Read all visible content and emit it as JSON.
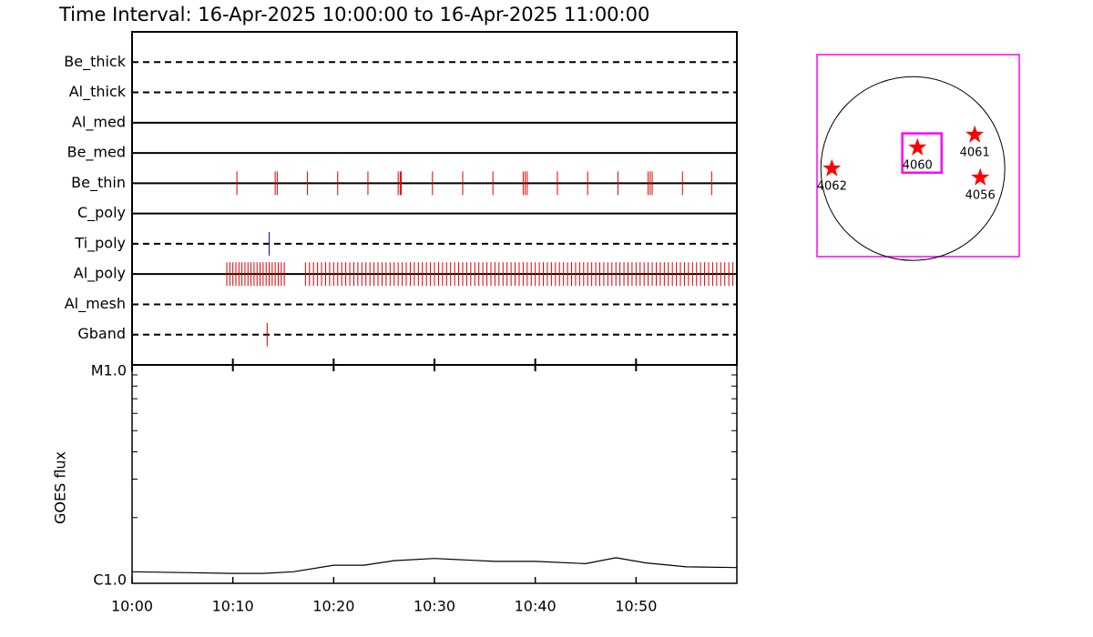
{
  "chart_data": [
    {
      "type": "timeline",
      "title": "Time Interval: 16-Apr-2025 10:00:00 to 16-Apr-2025 11:00:00",
      "xlim": [
        0,
        60
      ],
      "rows": [
        {
          "name": "Be_thick",
          "style": "dashed",
          "color": "#ff0000",
          "events": []
        },
        {
          "name": "Al_thick",
          "style": "dashed",
          "color": "#ff0000",
          "events": []
        },
        {
          "name": "Al_med",
          "style": "solid",
          "color": "#ff0000",
          "events": []
        },
        {
          "name": "Be_med",
          "style": "solid",
          "color": "#ff0000",
          "events": []
        },
        {
          "name": "Be_thin",
          "style": "solid",
          "color": "#e00000",
          "events": [
            10.4,
            14.2,
            14.4,
            17.4,
            20.4,
            23.4,
            26.4,
            26.6,
            26.7,
            29.8,
            32.8,
            35.8,
            38.8,
            39.0,
            39.2,
            42.2,
            45.2,
            48.2,
            51.2,
            51.4,
            51.6,
            54.6,
            57.5
          ]
        },
        {
          "name": "C_poly",
          "style": "solid",
          "color": "#ff0000",
          "events": []
        },
        {
          "name": "Ti_poly",
          "style": "dashed",
          "color": "#0000cc",
          "events": [
            13.6
          ]
        },
        {
          "name": "Al_poly",
          "style": "solid",
          "color": "#e00000",
          "events": [
            9.4,
            9.7,
            10.0,
            10.3,
            10.6,
            10.9,
            11.2,
            11.5,
            11.8,
            12.1,
            12.4,
            12.7,
            13.0,
            13.3,
            13.6,
            13.9,
            14.2,
            14.5,
            14.8,
            15.1,
            17.2,
            17.6,
            18.0,
            18.4,
            18.8,
            19.2,
            19.6,
            20.0,
            20.4,
            20.8,
            21.2,
            21.6,
            22.0,
            22.4,
            22.8,
            23.2,
            23.6,
            24.0,
            24.4,
            24.8,
            25.2,
            25.6,
            26.0,
            26.4,
            26.8,
            27.2,
            27.6,
            28.0,
            28.4,
            28.8,
            29.2,
            29.6,
            30.0,
            30.4,
            30.8,
            31.2,
            31.6,
            32.0,
            32.4,
            32.8,
            33.2,
            33.6,
            34.0,
            34.4,
            34.8,
            35.2,
            35.6,
            36.0,
            36.4,
            36.8,
            37.2,
            37.6,
            38.0,
            38.4,
            38.8,
            39.2,
            39.6,
            40.0,
            40.4,
            40.8,
            41.2,
            41.6,
            42.0,
            42.4,
            42.8,
            43.2,
            43.6,
            44.0,
            44.4,
            44.8,
            45.2,
            45.6,
            46.0,
            46.4,
            46.8,
            47.2,
            47.6,
            48.0,
            48.4,
            48.8,
            49.2,
            49.6,
            50.0,
            50.4,
            50.8,
            51.2,
            51.6,
            52.0,
            52.4,
            52.8,
            53.2,
            53.6,
            54.0,
            54.4,
            54.8,
            55.2,
            55.6,
            56.0,
            56.4,
            56.8,
            57.2,
            57.6,
            58.0,
            58.4,
            58.8,
            59.2,
            59.6
          ]
        },
        {
          "name": "Al_mesh",
          "style": "dashed",
          "color": "#ff0000",
          "events": []
        },
        {
          "name": "Gband",
          "style": "dashed",
          "color": "#cc0000",
          "events": [
            13.4
          ]
        }
      ]
    },
    {
      "type": "line",
      "y_label": "GOES flux",
      "log_scale": true,
      "color": "#000000",
      "x": [
        0,
        5,
        10,
        13,
        16,
        20,
        23,
        26,
        30,
        33,
        36,
        40,
        45,
        48,
        51,
        55,
        60
      ],
      "values": [
        1.13e-06,
        1.12e-06,
        1.11e-06,
        1.11e-06,
        1.13e-06,
        1.21e-06,
        1.21e-06,
        1.27e-06,
        1.3e-06,
        1.28e-06,
        1.26e-06,
        1.26e-06,
        1.23e-06,
        1.31e-06,
        1.24e-06,
        1.19e-06,
        1.18e-06
      ],
      "xlim": [
        0,
        60
      ],
      "xticks": [
        {
          "value": 0,
          "label": "10:00"
        },
        {
          "value": 10,
          "label": "10:10"
        },
        {
          "value": 20,
          "label": "10:20"
        },
        {
          "value": 30,
          "label": "10:30"
        },
        {
          "value": 40,
          "label": "10:40"
        },
        {
          "value": 50,
          "label": "10:50"
        }
      ],
      "ylim": [
        1e-06,
        1e-05
      ],
      "yticks": [
        {
          "value": 1e-06,
          "label": "C1.0"
        },
        {
          "value": 1e-05,
          "label": "M1.0"
        }
      ],
      "yminorticks": [
        2e-06,
        3e-06,
        4e-06,
        5e-06,
        6e-06,
        7e-06,
        8e-06,
        9e-06
      ]
    },
    {
      "type": "map",
      "xlim": [
        -1000,
        1110
      ],
      "ylim": [
        -920,
        1190
      ],
      "solar_radius": 960,
      "frame_color": "#ff00ff",
      "marker_color": "#ff0000",
      "points": [
        {
          "label": "4062",
          "x": -845,
          "y": 0
        },
        {
          "label": "4060",
          "x": 48,
          "y": 219
        },
        {
          "label": "4061",
          "x": 646,
          "y": 352
        },
        {
          "label": "4056",
          "x": 703,
          "y": -95
        }
      ],
      "fov": {
        "x": 95,
        "y": 162,
        "size": 410
      }
    }
  ]
}
